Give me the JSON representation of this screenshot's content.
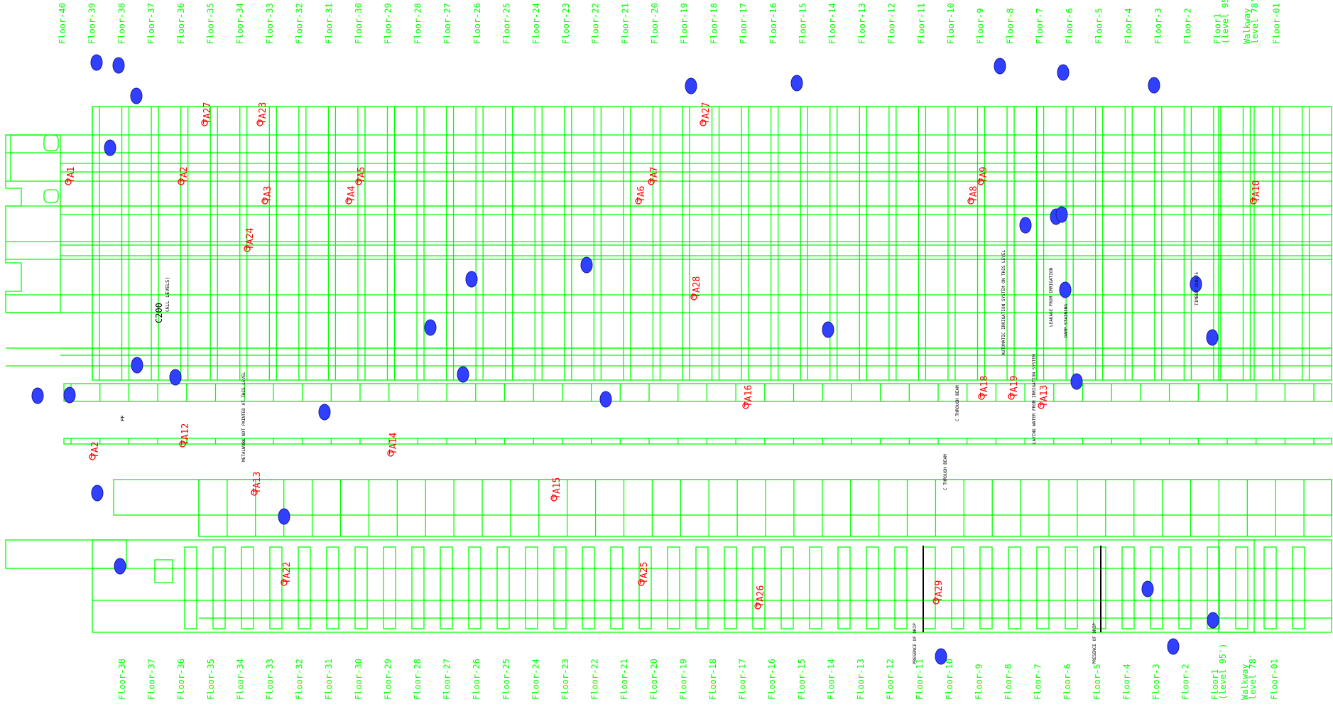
{
  "floors_top": [
    "Floor-40",
    "Floor-39",
    "Floor-38",
    "Floor-37",
    "Floor-36",
    "Floor-35",
    "Floor-34",
    "Floor-33",
    "Floor-32",
    "Floor-31",
    "Floor-30",
    "Floor-29",
    "Floor-28",
    "Floor-27",
    "Floor-26",
    "Floor-25",
    "Floor-24",
    "Floor-23",
    "Floor-22",
    "Floor-21",
    "Floor-20",
    "Floor-19",
    "Floor-18",
    "Floor-17",
    "Floor-16",
    "Floor-15",
    "Floor-14",
    "Floor-13",
    "Floor-12",
    "Floor-11",
    "Floor-10",
    "Floor-9",
    "Floor-8",
    "Floor-7",
    "Floor-6",
    "Floor-5",
    "Floor-4",
    "Floor-3",
    "Floor-2",
    "Floor1 (level 95')",
    "Walkway level 78'",
    "Floor-01"
  ],
  "floors_bottom": [
    "Floor-38",
    "Floor-37",
    "Floor-36",
    "Floor-35",
    "Floor-34",
    "Floor-33",
    "Floor-32",
    "Floor-31",
    "Floor-30",
    "Floor-29",
    "Floor-28",
    "Floor-27",
    "Floor-26",
    "Floor-25",
    "Floor-24",
    "Floor-23",
    "Floor-22",
    "Floor-21",
    "Floor-20",
    "Floor-19",
    "Floor-18",
    "Floor-17",
    "Floor-16",
    "Floor-15",
    "Floor-14",
    "Floor-13",
    "Floor-12",
    "Floor-11",
    "Floor-10",
    "Floor-9",
    "Floor-8",
    "Floor-7",
    "Floor-6",
    "Floor-5",
    "Floor-4",
    "Floor-3",
    "Floor-2",
    "Floor1 (level 95')",
    "Walkway level 78'",
    "Floor-01"
  ],
  "test_areas": [
    "TA1",
    "TA2",
    "TA27",
    "TA23",
    "TA3",
    "TA24",
    "TA4",
    "TA5",
    "TA6",
    "TA7",
    "TA27",
    "TA28",
    "TA8",
    "TA9",
    "TA10",
    "TA16",
    "TA18",
    "TA19",
    "TA13",
    "TA12",
    "TA14",
    "TA13",
    "TA15",
    "TA22",
    "TA25",
    "TA26",
    "TA29",
    "TA2"
  ],
  "notes": {
    "c200_large": "C200",
    "c200_all_levels": "(ALL LEVELS)",
    "c_through_beam_1": "C THROUGH BEAM",
    "c_through_beam_2": "C THROUGH BEAM",
    "leakage": "LEAKAGE FROM IRRIGATION",
    "damp_staining": "DAMP STAINING",
    "automatic_irrigation": "AUTOMATIC IRRIGATION SYSTEM ON THIS LEVEL",
    "laying_water": "LAYING WATER FROM IRRIGATION SYSTEM",
    "presence_drip_1": "PRESENCE OF DRIP",
    "presence_drip_2": "PRESENCE OF DRIP",
    "metalwork": "METALWORK NOT PAINTED AT THIS LEVEL",
    "pf": "PF",
    "timber": "TIMBER 250x75"
  }
}
